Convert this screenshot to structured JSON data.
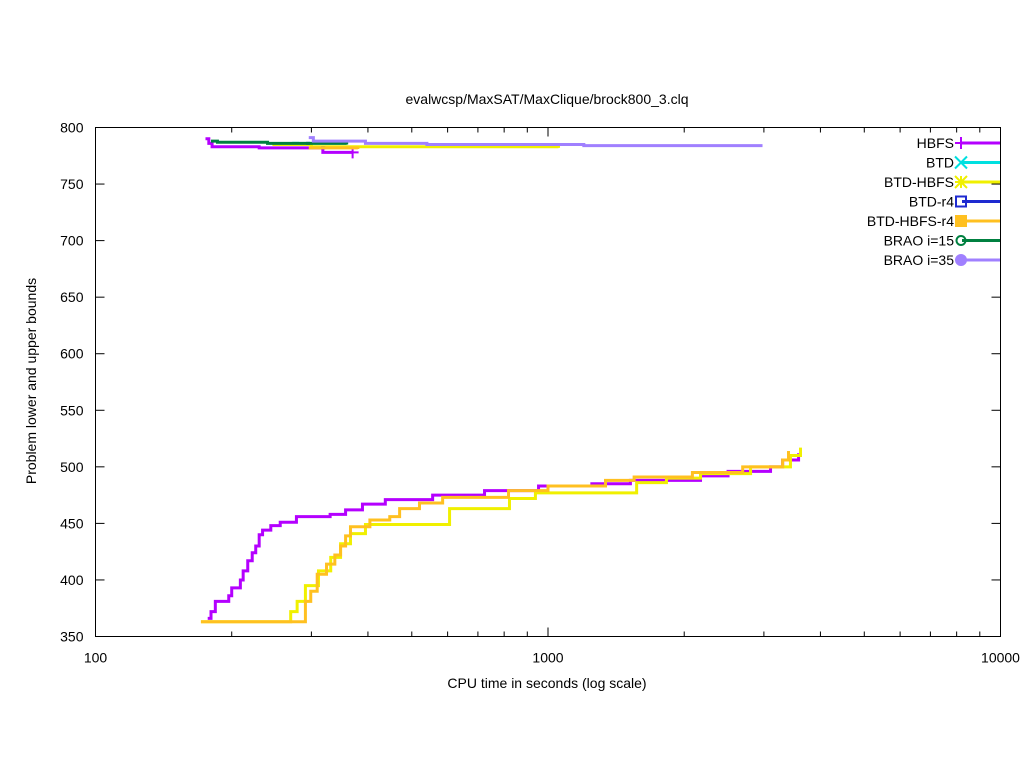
{
  "chart_data": {
    "type": "line",
    "title": "evalwcsp/MaxSAT/MaxClique/brock800_3.clq",
    "xlabel": "CPU time in seconds (log scale)",
    "ylabel": "Problem lower and upper bounds",
    "xscale": "log",
    "xlim": [
      100,
      10000
    ],
    "ylim": [
      350,
      800
    ],
    "xticks": [
      "100",
      "1000",
      "10000"
    ],
    "xtick_values": [
      100,
      1000,
      10000
    ],
    "yticks": [
      "350",
      "400",
      "450",
      "500",
      "550",
      "600",
      "650",
      "700",
      "750",
      "800"
    ],
    "ytick_values": [
      350,
      400,
      450,
      500,
      550,
      600,
      650,
      700,
      750,
      800
    ],
    "grid": false,
    "legend_position": "top-right",
    "series": [
      {
        "name": "HBFS",
        "color": "#b400ff",
        "marker": "plus",
        "segments": [
          [
            [
              177,
              366
            ],
            [
              180,
              372
            ],
            [
              184,
              381
            ],
            [
              197,
              386
            ],
            [
              200,
              393
            ],
            [
              209,
              400
            ],
            [
              212,
              408
            ],
            [
              217,
              417
            ],
            [
              222,
              424
            ],
            [
              226,
              430
            ],
            [
              230,
              440
            ],
            [
              234,
              444
            ],
            [
              244,
              448
            ],
            [
              256,
              451
            ],
            [
              278,
              456
            ],
            [
              330,
              458
            ],
            [
              357,
              462
            ],
            [
              389,
              467
            ],
            [
              437,
              471
            ],
            [
              556,
              475
            ],
            [
              724,
              479
            ],
            [
              953,
              483
            ],
            [
              1250,
              485
            ],
            [
              1521,
              488
            ],
            [
              2173,
              492
            ],
            [
              2500,
              496
            ],
            [
              3103,
              500
            ],
            [
              3300,
              506
            ],
            [
              3579,
              512
            ]
          ],
          [
            [
              175,
              790
            ],
            [
              178,
              786
            ],
            [
              181,
              783
            ],
            [
              230,
              782
            ],
            [
              318,
              782
            ],
            [
              318,
              778
            ],
            [
              370,
              778
            ]
          ]
        ]
      },
      {
        "name": "BTD",
        "color": "#00e0e0",
        "marker": "x",
        "segments": [
          [
            [
              272,
              786
            ],
            [
              282,
              786
            ]
          ]
        ]
      },
      {
        "name": "BTD-HBFS",
        "color": "#f0f000",
        "marker": "star",
        "segments": [
          [
            [
              171,
              363
            ],
            [
              263,
              363
            ],
            [
              270,
              372
            ],
            [
              279,
              381
            ],
            [
              291,
              395
            ],
            [
              311,
              408
            ],
            [
              331,
              420
            ],
            [
              348,
              432
            ],
            [
              366,
              441
            ],
            [
              395,
              449
            ],
            [
              606,
              463
            ],
            [
              822,
              472
            ],
            [
              938,
              477
            ],
            [
              1570,
              486
            ],
            [
              1827,
              490
            ],
            [
              2173,
              494
            ],
            [
              2803,
              500
            ],
            [
              3434,
              510
            ],
            [
              3614,
              517
            ]
          ],
          [
            [
              246,
              785
            ],
            [
              300,
              783
            ],
            [
              1055,
              782
            ]
          ]
        ]
      },
      {
        "name": "BTD-r4",
        "color": "#1e2ad0",
        "marker": "square",
        "segments": [
          [
            [
              292,
              786
            ],
            [
              298,
              786
            ]
          ],
          [
            [
              315,
              782
            ],
            [
              322,
              782
            ]
          ]
        ]
      },
      {
        "name": "BTD-HBFS-r4",
        "color": "#ffc020",
        "marker": "filled-square",
        "segments": [
          [
            [
              171,
              363
            ],
            [
              284,
              363
            ],
            [
              291,
              381
            ],
            [
              299,
              390
            ],
            [
              309,
              405
            ],
            [
              324,
              414
            ],
            [
              338,
              422
            ],
            [
              348,
              430
            ],
            [
              357,
              439
            ],
            [
              366,
              447
            ],
            [
              404,
              453
            ],
            [
              447,
              456
            ],
            [
              470,
              463
            ],
            [
              520,
              468
            ],
            [
              585,
              473
            ],
            [
              818,
              479
            ],
            [
              1000,
              483
            ],
            [
              1340,
              488
            ],
            [
              1550,
              491
            ],
            [
              2085,
              495
            ],
            [
              2693,
              500
            ],
            [
              3300,
              506
            ],
            [
              3400,
              514
            ]
          ],
          [
            [
              296,
              782
            ],
            [
              330,
              782
            ],
            [
              380,
              781
            ]
          ]
        ]
      },
      {
        "name": "BRAO i=15",
        "color": "#008040",
        "marker": "circle",
        "segments": [
          [
            [
              180,
              788
            ],
            [
              186,
              787
            ],
            [
              240,
              786
            ],
            [
              300,
              786
            ],
            [
              359,
              785
            ]
          ]
        ]
      },
      {
        "name": "BRAO i=35",
        "color": "#a080ff",
        "marker": "filled-circle",
        "segments": [
          [
            [
              296,
              791
            ],
            [
              303,
              788
            ],
            [
              395,
              786
            ],
            [
              540,
              785
            ],
            [
              1200,
              784
            ],
            [
              2979,
              784
            ]
          ]
        ]
      }
    ]
  }
}
